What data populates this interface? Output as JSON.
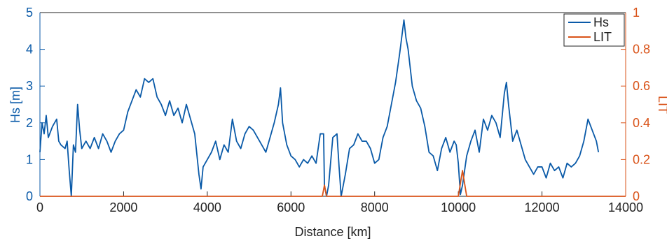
{
  "chart_data": {
    "type": "line",
    "xlabel": "Distance [km]",
    "ylabel": "Hs [m]",
    "y2label": "LIT",
    "xlim": [
      0,
      14000
    ],
    "xticks": [
      0,
      2000,
      4000,
      6000,
      8000,
      10000,
      12000,
      14000
    ],
    "ylim": [
      0,
      5
    ],
    "yticks": [
      0,
      1,
      2,
      3,
      4,
      5
    ],
    "y2lim": [
      0,
      1
    ],
    "y2ticks": [
      0,
      0.2,
      0.4,
      0.6,
      0.8,
      1
    ],
    "legend": "top-right",
    "series": [
      {
        "name": "Hs",
        "color": "#0a5aa8",
        "x": [
          0,
          50,
          100,
          150,
          200,
          300,
          400,
          450,
          500,
          600,
          650,
          700,
          750,
          800,
          850,
          900,
          950,
          1000,
          1100,
          1200,
          1300,
          1400,
          1500,
          1600,
          1700,
          1800,
          1900,
          2000,
          2100,
          2200,
          2300,
          2400,
          2500,
          2600,
          2700,
          2800,
          2900,
          3000,
          3100,
          3200,
          3300,
          3400,
          3500,
          3600,
          3700,
          3800,
          3850,
          3900,
          4000,
          4100,
          4200,
          4300,
          4400,
          4500,
          4600,
          4700,
          4800,
          4900,
          5000,
          5100,
          5200,
          5300,
          5400,
          5500,
          5600,
          5700,
          5750,
          5800,
          5900,
          6000,
          6100,
          6200,
          6300,
          6400,
          6500,
          6600,
          6700,
          6780,
          6800,
          6850,
          6900,
          7000,
          7100,
          7150,
          7200,
          7300,
          7400,
          7500,
          7600,
          7700,
          7800,
          7900,
          8000,
          8100,
          8200,
          8300,
          8400,
          8500,
          8600,
          8700,
          8750,
          8800,
          8900,
          9000,
          9100,
          9200,
          9300,
          9400,
          9500,
          9600,
          9700,
          9800,
          9900,
          9950,
          10000,
          10050,
          10100,
          10200,
          10300,
          10400,
          10500,
          10600,
          10700,
          10800,
          10900,
          11000,
          11100,
          11150,
          11200,
          11300,
          11400,
          11500,
          11600,
          11700,
          11800,
          11900,
          12000,
          12100,
          12200,
          12300,
          12400,
          12500,
          12600,
          12700,
          12800,
          12900,
          13000,
          13100,
          13200,
          13300,
          13350
        ],
        "values": [
          1.2,
          2.0,
          1.7,
          2.2,
          1.6,
          1.9,
          2.1,
          1.5,
          1.4,
          1.3,
          1.5,
          0.7,
          0.0,
          1.4,
          1.2,
          2.5,
          1.8,
          1.3,
          1.5,
          1.3,
          1.6,
          1.3,
          1.7,
          1.5,
          1.2,
          1.5,
          1.7,
          1.8,
          2.3,
          2.6,
          2.9,
          2.7,
          3.2,
          3.1,
          3.2,
          2.7,
          2.5,
          2.2,
          2.6,
          2.2,
          2.4,
          2.0,
          2.5,
          2.1,
          1.7,
          0.6,
          0.2,
          0.8,
          1.0,
          1.2,
          1.5,
          1.0,
          1.4,
          1.2,
          2.1,
          1.5,
          1.3,
          1.7,
          1.9,
          1.8,
          1.6,
          1.4,
          1.2,
          1.6,
          2.0,
          2.5,
          2.95,
          2.0,
          1.4,
          1.1,
          1.0,
          0.8,
          1.0,
          0.9,
          1.1,
          0.9,
          1.7,
          1.7,
          0.3,
          0.0,
          0.3,
          1.6,
          1.7,
          0.8,
          0.0,
          0.6,
          1.3,
          1.4,
          1.7,
          1.5,
          1.5,
          1.3,
          0.9,
          1.0,
          1.6,
          1.9,
          2.5,
          3.1,
          3.9,
          4.8,
          4.3,
          4.0,
          3.0,
          2.6,
          2.4,
          1.9,
          1.2,
          1.1,
          0.7,
          1.3,
          1.6,
          1.2,
          1.5,
          1.4,
          0.9,
          0.05,
          0.3,
          1.1,
          1.5,
          1.8,
          1.2,
          2.1,
          1.8,
          2.2,
          2.0,
          1.6,
          2.8,
          3.1,
          2.5,
          1.5,
          1.8,
          1.4,
          1.0,
          0.8,
          0.6,
          0.8,
          0.8,
          0.5,
          0.9,
          0.7,
          0.8,
          0.5,
          0.9,
          0.8,
          0.9,
          1.1,
          1.5,
          2.1,
          1.8,
          1.5,
          1.2
        ]
      },
      {
        "name": "LIT",
        "color": "#d95319",
        "axis": "y2",
        "x": [
          0,
          6750,
          6800,
          6850,
          10000,
          10100,
          10200,
          14000
        ],
        "values": [
          0,
          0,
          0.06,
          0,
          0,
          0.14,
          0,
          0
        ]
      }
    ]
  }
}
